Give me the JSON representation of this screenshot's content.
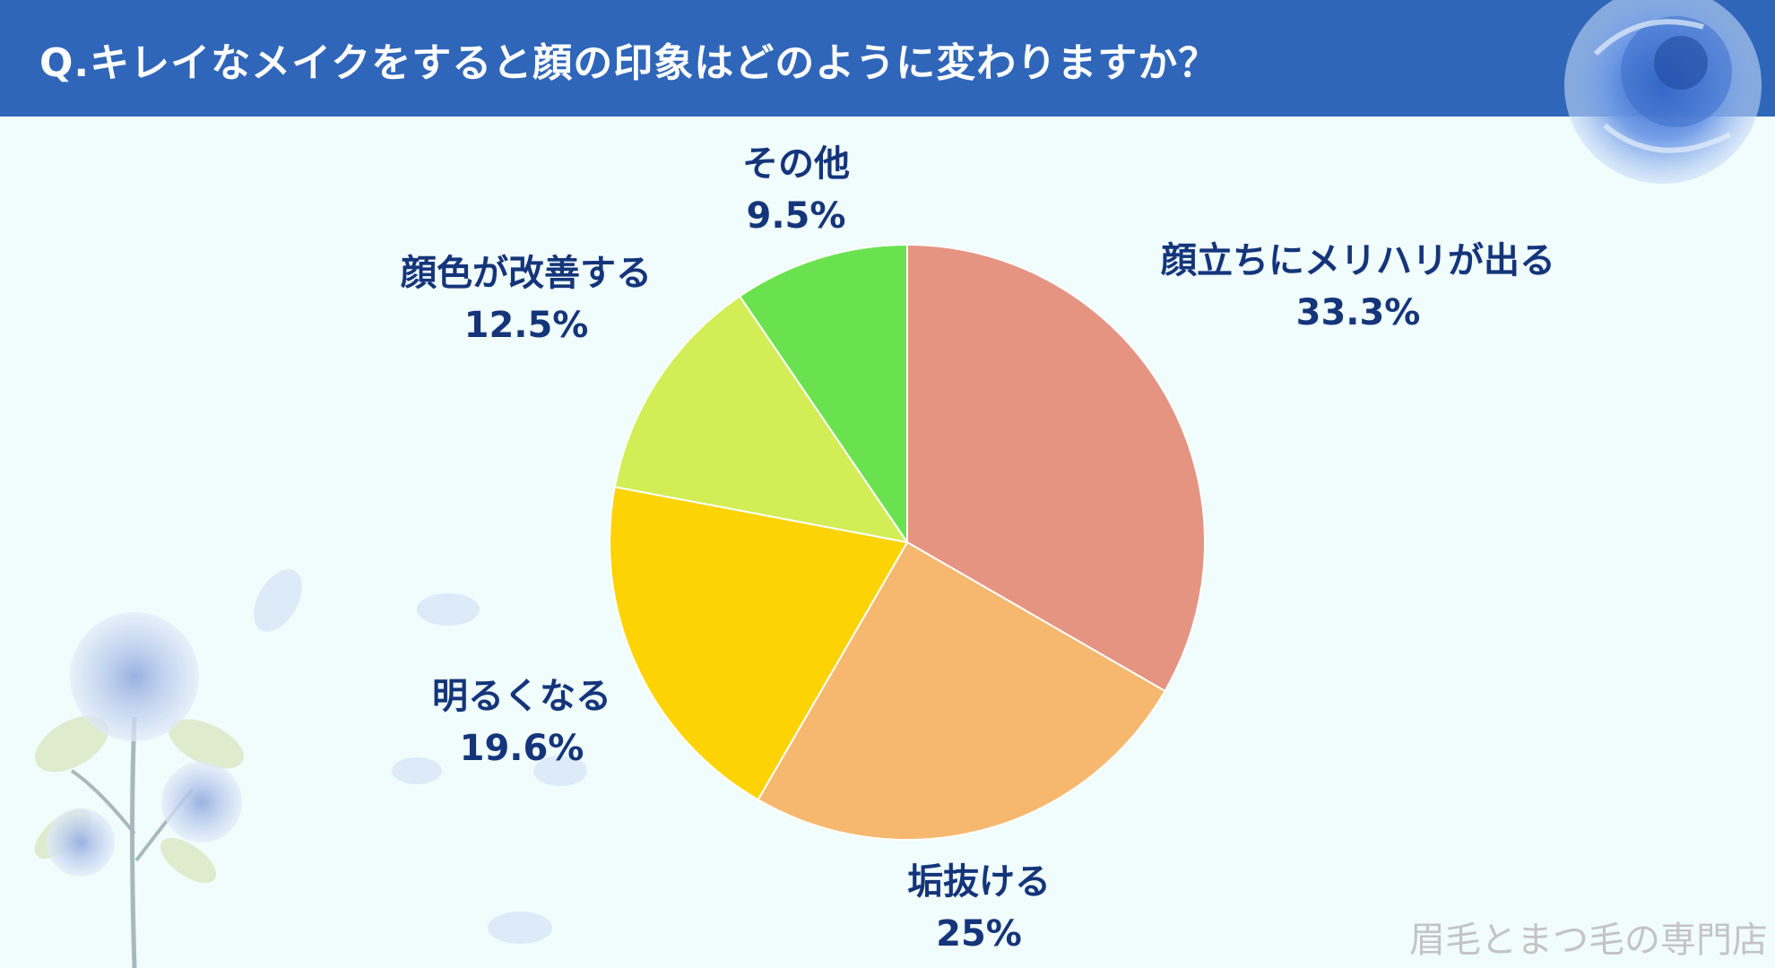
{
  "header": {
    "title": "Q.キレイなメイクをすると顔の印象はどのように変わりますか？"
  },
  "watermark": "眉毛とまつ毛の専門店",
  "chart_data": {
    "type": "pie",
    "start_angle_deg": 0,
    "direction": "clockwise",
    "slices": [
      {
        "label": "顔立ちにメリハリが出る",
        "pct_label": "33.3%",
        "value": 33.3,
        "color": "#e59482"
      },
      {
        "label": "垢抜ける",
        "pct_label": "25%",
        "value": 25,
        "color": "#f6b86e"
      },
      {
        "label": "明るくなる",
        "pct_label": "19.6%",
        "value": 19.6,
        "color": "#fdd303"
      },
      {
        "label": "顔色が改善する",
        "pct_label": "12.5%",
        "value": 12.5,
        "color": "#d2ed55"
      },
      {
        "label": "その他",
        "pct_label": "9.5%",
        "value": 9.5,
        "color": "#6ae24f"
      }
    ]
  }
}
